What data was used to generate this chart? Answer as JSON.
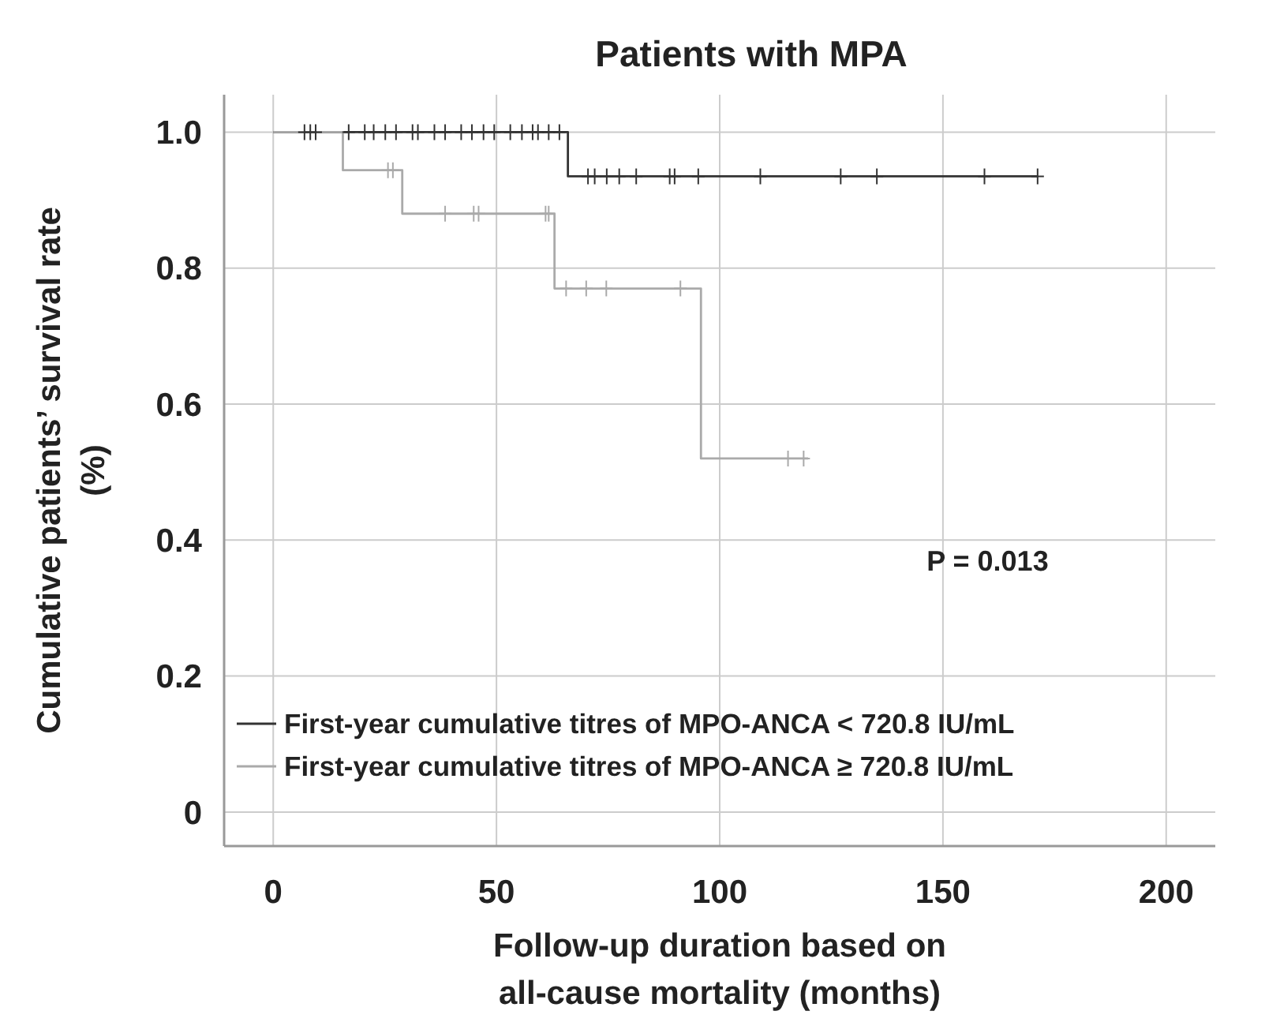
{
  "chart_data": {
    "type": "step",
    "title": "Patients with MPA",
    "xlabel": "Follow-up duration based on all-cause mortality (months)",
    "ylabel": "Cumulative patients’ survival rate (%)",
    "series": [
      {
        "name": "First-year cumulative titres of MPO-ANCA < 720.8 IU/mL",
        "color": "#333333",
        "x": [
          0,
          66,
          171.2
        ],
        "values": [
          1,
          0.935,
          0.935
        ],
        "marker": "none"
      },
      {
        "name": "First-year cumulative titres of MPO-ANCA ≥ 720.8 IU/mL",
        "color": "#aaaaaa",
        "x": [
          0,
          15.6,
          28.9,
          63,
          95.8,
          119.8
        ],
        "values": [
          1,
          0.944,
          0.88,
          0.77,
          0.52,
          0.52
        ],
        "marker": "none"
      },
      {
        "type": "scatter",
        "color": "#333333",
        "marker": "cross",
        "x": [
          7,
          8.3,
          9.5,
          16.9,
          20.5,
          22.5,
          25.1,
          27.5,
          31.2,
          32.4,
          36.1,
          38.5,
          42.1,
          44.5,
          47.1,
          49.5,
          53.1,
          55.7,
          58.1,
          59.3,
          61.7,
          64.1,
          70.5,
          72,
          74.7,
          77.5,
          81.3,
          88.8,
          89.9,
          95.2,
          109.1,
          127.1,
          135.2,
          159.3,
          171.2
        ],
        "values": [
          1,
          1,
          1,
          1,
          1,
          1,
          1,
          1,
          1,
          1,
          1,
          1,
          1,
          1,
          1,
          1,
          1,
          1,
          1,
          1,
          1,
          1,
          0.935,
          0.935,
          0.935,
          0.935,
          0.935,
          0.935,
          0.935,
          0.935,
          0.935,
          0.935,
          0.935,
          0.935,
          0.935
        ]
      },
      {
        "type": "scatter",
        "color": "#aaaaaa",
        "marker": "cross",
        "x": [
          25.7,
          26.8,
          38.5,
          44.9,
          46,
          61,
          61.7,
          65.6,
          70.1,
          74.6,
          91.2,
          115.3,
          118.8
        ],
        "values": [
          0.944,
          0.944,
          0.88,
          0.88,
          0.88,
          0.88,
          0.88,
          0.77,
          0.77,
          0.77,
          0.77,
          0.52,
          0.52
        ]
      }
    ],
    "xlim": [
      -11,
      211
    ],
    "xticks": [
      0,
      50,
      100,
      150,
      200
    ],
    "ylim": [
      -0.05,
      1.055
    ],
    "yticks": [
      0,
      0.2,
      0.4,
      0.6,
      0.8,
      {
        "value": 1,
        "label": "1.0"
      }
    ],
    "grid": true,
    "legend": "bottom left",
    "annotations": [
      "P = 0.013"
    ]
  }
}
